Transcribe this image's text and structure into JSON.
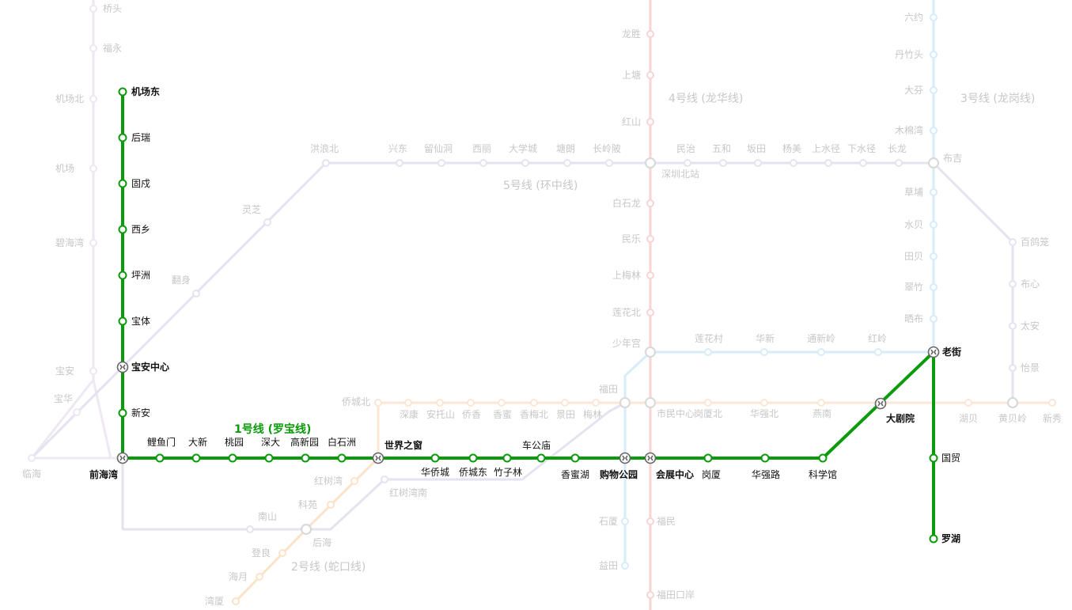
{
  "map_title": "",
  "main_line": {
    "name": "1号线 (罗宝线)",
    "color": "#0a9b0a",
    "stations": {
      "jichangdong": "机场东",
      "hourui": "后瑞",
      "guxu": "固戍",
      "xixiang": "西乡",
      "pingzhou": "坪洲",
      "baoti": "宝体",
      "baoanzhongxin": "宝安中心",
      "xinan": "新安",
      "qianhaiwan": "前海湾",
      "liyumen": "鲤鱼门",
      "daxin": "大新",
      "taoyuan": "桃园",
      "shenda": "深大",
      "gaoxinyuan": "高新园",
      "baishizhou": "白石洲",
      "shijiezhichuang": "世界之窗",
      "huaqiaocheng": "华侨城",
      "qiaochengdong": "侨城东",
      "zhuzilin": "竹子林",
      "chegongmiao": "车公庙",
      "xiangmihu": "香蜜湖",
      "gouwugongyuan": "购物公园",
      "huizhanzhongxin": "会展中心",
      "gangxia": "岗厦",
      "huaqianglu": "华强路",
      "kexueguan": "科学馆",
      "dajuyuan": "大剧院",
      "laojie": "老街",
      "guomao": "国贸",
      "luohu": "罗湖"
    }
  },
  "faded_lines": {
    "line2_name": "2号线 (蛇口线)",
    "line3_name": "3号线 (龙岗线)",
    "line4_name": "4号线 (龙华线)",
    "line5_name": "5号线 (环中线)",
    "line11": [
      "机场北",
      "机场",
      "碧海湾",
      "宝安",
      "宝华",
      "临海",
      "桥头",
      "福永"
    ],
    "line2": [
      "红树湾",
      "科苑",
      "后海",
      "登良",
      "海月",
      "湾厦",
      "南山",
      "红树湾南"
    ],
    "line5": [
      "洪浪北",
      "灵芝",
      "翻身",
      "兴东",
      "留仙洞",
      "西丽",
      "大学城",
      "塘朗",
      "长岭陂",
      "深圳北站",
      "民治",
      "五和",
      "坂田",
      "杨美",
      "上水径",
      "下水径",
      "长龙",
      "布吉"
    ],
    "line4": [
      "龙胜",
      "上塘",
      "红山",
      "白石龙",
      "民乐",
      "上梅林",
      "莲花北",
      "少年宫",
      "市民中心",
      "福民",
      "福田口岸"
    ],
    "line3": [
      "六约",
      "丹竹头",
      "大芬",
      "木棉湾",
      "草埔",
      "水贝",
      "田贝",
      "翠竹",
      "晒布"
    ],
    "line3b": [
      "莲花村",
      "华新",
      "通新岭",
      "红岭"
    ],
    "line9": [
      "侨城北",
      "深康",
      "安托山",
      "侨香",
      "香蜜",
      "香梅北",
      "景田",
      "梅林",
      "福田",
      "岗厦北",
      "华强北",
      "燕南"
    ],
    "line14": [
      "百鸽笼",
      "布心",
      "太安",
      "怡景",
      "湖贝",
      "黄贝岭",
      "新秀"
    ],
    "line_misc": [
      "石厦",
      "益田"
    ]
  },
  "colors": {
    "main": "#0a9b0a",
    "line2": "#fbe3c8",
    "line3": "#d6ecfa",
    "line4": "#f8d4d4",
    "line5": "#e6e2ef",
    "line11": "#ede8f2",
    "line9": "#fbe7d3",
    "faded_text": "#c7c7c7"
  }
}
